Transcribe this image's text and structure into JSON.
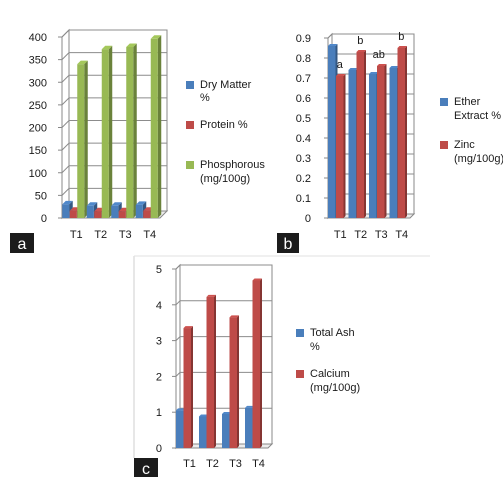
{
  "chart_data": [
    {
      "type": "bar",
      "panel_label": "a",
      "categories": [
        "T1",
        "T2",
        "T3",
        "T4"
      ],
      "ylim": [
        0,
        400
      ],
      "yticks": [
        0,
        50,
        100,
        150,
        200,
        250,
        300,
        350,
        400
      ],
      "series": [
        {
          "name": "Dry Matter %",
          "legend_lines": [
            "Dry Matter",
            "%"
          ],
          "color": "#4a7ebb",
          "values": [
            30,
            27,
            27,
            29
          ]
        },
        {
          "name": "Protein %",
          "legend_lines": [
            "Protein %"
          ],
          "color": "#be4b48",
          "values": [
            16,
            15,
            15,
            16
          ]
        },
        {
          "name": "Phosphorous (mg/100g)",
          "legend_lines": [
            "Phosphorous",
            "(mg/100g)"
          ],
          "color": "#98b954",
          "values": [
            340,
            373,
            378,
            396
          ]
        }
      ]
    },
    {
      "type": "bar",
      "panel_label": "b",
      "categories": [
        "T1",
        "T2",
        "T3",
        "T4"
      ],
      "ylim": [
        0,
        0.9
      ],
      "yticks": [
        0,
        0.1,
        0.2,
        0.3,
        0.4,
        0.5,
        0.6,
        0.7,
        0.8,
        0.9
      ],
      "series": [
        {
          "name": "Ether Extract %",
          "legend_lines": [
            "Ether",
            "Extract %"
          ],
          "color": "#4a7ebb",
          "values": [
            0.86,
            0.74,
            0.72,
            0.75
          ]
        },
        {
          "name": "Zinc (mg/100g)",
          "legend_lines": [
            "Zinc",
            "(mg/100g)"
          ],
          "color": "#be4b48",
          "values": [
            0.71,
            0.83,
            0.76,
            0.85
          ]
        }
      ],
      "annotations": [
        "a",
        "b",
        "ab",
        "b"
      ]
    },
    {
      "type": "bar",
      "panel_label": "c",
      "categories": [
        "T1",
        "T2",
        "T3",
        "T4"
      ],
      "ylim": [
        0,
        5
      ],
      "yticks": [
        0,
        1,
        2,
        3,
        4,
        5
      ],
      "series": [
        {
          "name": "Total Ash %",
          "legend_lines": [
            "Total Ash",
            "%"
          ],
          "color": "#4a7ebb",
          "values": [
            1.05,
            0.88,
            0.95,
            1.12
          ]
        },
        {
          "name": "Calcium (mg/100g)",
          "legend_lines": [
            "Calcium",
            "(mg/100g)"
          ],
          "color": "#be4b48",
          "values": [
            3.35,
            4.22,
            3.65,
            4.68
          ]
        }
      ]
    }
  ]
}
